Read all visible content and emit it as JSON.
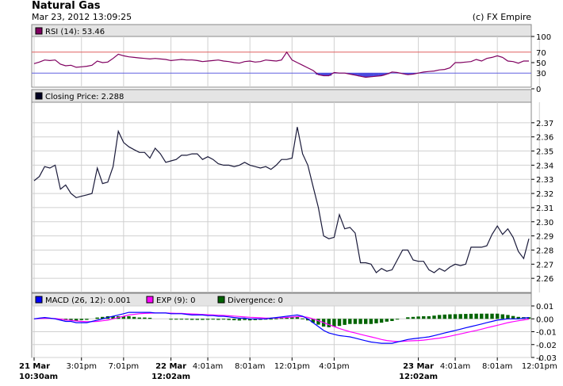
{
  "header": {
    "title": "Natural Gas",
    "timestamp": "Mar 23, 2012 13:09:25",
    "credit": "(c) FX Empire"
  },
  "colors": {
    "rsi_line": "#800060",
    "rsi_fill": "#4a4adf",
    "rsi_upper_line": "#e06060",
    "rsi_lower_line": "#6060e0",
    "price_line": "#1a1a3a",
    "macd_line": "#0000ff",
    "exp_line": "#ff00ff",
    "divergence": "#006400",
    "panel_header": "#e4e4e4",
    "grid": "#d0d0d0"
  },
  "chart_data": [
    {
      "type": "line",
      "legend": "RSI (14): 53.46",
      "legend_color": "#800060",
      "ylim": [
        0,
        100
      ],
      "yticks": [
        "100",
        "50",
        "0"
      ],
      "levels": [
        {
          "value": 70,
          "label": "70",
          "color": "#e06060"
        },
        {
          "value": 30,
          "label": "30",
          "color": "#6060e0"
        }
      ],
      "values": [
        48,
        51,
        55,
        54,
        55,
        47,
        44,
        45,
        41,
        42,
        43,
        45,
        53,
        50,
        51,
        58,
        66,
        63,
        61,
        60,
        59,
        58,
        57,
        58,
        57,
        56,
        54,
        55,
        56,
        55,
        55,
        54,
        52,
        53,
        54,
        55,
        53,
        52,
        50,
        49,
        52,
        53,
        51,
        52,
        55,
        54,
        53,
        55,
        70,
        55,
        50,
        45,
        40,
        35,
        27,
        25,
        25,
        31,
        30,
        30,
        28,
        26,
        24,
        22,
        23,
        24,
        25,
        28,
        32,
        31,
        29,
        27,
        28,
        30,
        32,
        33,
        34,
        36,
        37,
        40,
        50,
        50,
        51,
        52,
        56,
        53,
        58,
        60,
        63,
        60,
        53,
        52,
        49,
        53,
        53
      ]
    },
    {
      "type": "line",
      "legend": "Closing Price: 2.288",
      "legend_color": "#000000",
      "ylim": [
        2.25,
        2.38
      ],
      "yticks": [
        "2.37",
        "2.36",
        "2.35",
        "2.34",
        "2.33",
        "2.32",
        "2.31",
        "2.30",
        "2.29",
        "2.28",
        "2.27",
        "2.26"
      ],
      "values": [
        2.329,
        2.332,
        2.339,
        2.338,
        2.34,
        2.323,
        2.326,
        2.32,
        2.317,
        2.318,
        2.319,
        2.32,
        2.338,
        2.327,
        2.328,
        2.339,
        2.364,
        2.356,
        2.353,
        2.351,
        2.349,
        2.349,
        2.345,
        2.352,
        2.348,
        2.342,
        2.343,
        2.344,
        2.347,
        2.347,
        2.348,
        2.348,
        2.344,
        2.346,
        2.344,
        2.341,
        2.34,
        2.34,
        2.339,
        2.34,
        2.342,
        2.34,
        2.339,
        2.338,
        2.339,
        2.337,
        2.34,
        2.344,
        2.344,
        2.345,
        2.367,
        2.348,
        2.34,
        2.325,
        2.31,
        2.29,
        2.288,
        2.289,
        2.305,
        2.295,
        2.296,
        2.292,
        2.271,
        2.271,
        2.27,
        2.264,
        2.267,
        2.265,
        2.266,
        2.273,
        2.28,
        2.28,
        2.273,
        2.272,
        2.272,
        2.266,
        2.264,
        2.267,
        2.265,
        2.268,
        2.27,
        2.269,
        2.27,
        2.282,
        2.282,
        2.282,
        2.283,
        2.291,
        2.297,
        2.291,
        2.295,
        2.289,
        2.279,
        2.274,
        2.288
      ]
    },
    {
      "type": "line",
      "legend": [
        {
          "label": "MACD (26, 12): 0.001",
          "color": "#0000ff"
        },
        {
          "label": "EXP (9): 0",
          "color": "#ff00ff"
        },
        {
          "label": "Divergence: 0",
          "color": "#006400"
        }
      ],
      "ylim": [
        -0.03,
        0.01
      ],
      "yticks": [
        "0.01",
        "0.00",
        "-0.01",
        "-0.02",
        "-0.03"
      ],
      "series": [
        {
          "name": "MACD (26, 12)",
          "color": "#0000ff",
          "values": [
            0,
            0.0005,
            0.001,
            0.0005,
            0,
            -0.001,
            -0.002,
            -0.002,
            -0.003,
            -0.003,
            -0.003,
            -0.002,
            -0.001,
            0,
            0.001,
            0.002,
            0.003,
            0.004,
            0.005,
            0.005,
            0.005,
            0.005,
            0.005,
            0.0045,
            0.0045,
            0.0045,
            0.004,
            0.004,
            0.004,
            0.0035,
            0.003,
            0.003,
            0.003,
            0.0025,
            0.0025,
            0.002,
            0.002,
            0.0015,
            0.001,
            0.0005,
            0.0005,
            0,
            0,
            0,
            0,
            0.0005,
            0.001,
            0.0015,
            0.002,
            0.0025,
            0.003,
            0.002,
            0,
            -0.003,
            -0.006,
            -0.009,
            -0.011,
            -0.012,
            -0.013,
            -0.0135,
            -0.014,
            -0.015,
            -0.016,
            -0.017,
            -0.018,
            -0.0185,
            -0.019,
            -0.019,
            -0.019,
            -0.018,
            -0.017,
            -0.016,
            -0.0155,
            -0.015,
            -0.0145,
            -0.014,
            -0.013,
            -0.012,
            -0.011,
            -0.01,
            -0.009,
            -0.008,
            -0.007,
            -0.006,
            -0.005,
            -0.004,
            -0.003,
            -0.002,
            -0.001,
            -0.0005,
            0,
            0,
            0,
            0.0005,
            0.001
          ]
        },
        {
          "name": "EXP (9)",
          "color": "#ff00ff",
          "values": [
            0,
            0.0002,
            0.0004,
            0.0004,
            0.0002,
            -0.0002,
            -0.0008,
            -0.0012,
            -0.0016,
            -0.002,
            -0.0022,
            -0.0022,
            -0.002,
            -0.0015,
            -0.001,
            0,
            0.001,
            0.002,
            0.003,
            0.0035,
            0.004,
            0.0042,
            0.0044,
            0.0045,
            0.0045,
            0.0045,
            0.0044,
            0.0043,
            0.0042,
            0.004,
            0.0038,
            0.0036,
            0.0034,
            0.0032,
            0.003,
            0.0028,
            0.0026,
            0.0024,
            0.0021,
            0.0018,
            0.0015,
            0.0012,
            0.001,
            0.0008,
            0.0006,
            0.0006,
            0.0007,
            0.0009,
            0.0011,
            0.0014,
            0.0017,
            0.0017,
            0.0012,
            0,
            -0.0015,
            -0.003,
            -0.0045,
            -0.006,
            -0.0075,
            -0.0088,
            -0.01,
            -0.011,
            -0.012,
            -0.013,
            -0.014,
            -0.015,
            -0.016,
            -0.0168,
            -0.0173,
            -0.0176,
            -0.0175,
            -0.0172,
            -0.017,
            -0.0168,
            -0.0165,
            -0.016,
            -0.0155,
            -0.015,
            -0.0143,
            -0.0135,
            -0.0126,
            -0.0117,
            -0.0108,
            -0.0099,
            -0.009,
            -0.008,
            -0.007,
            -0.006,
            -0.005,
            -0.004,
            -0.003,
            -0.0022,
            -0.0015,
            -0.0008,
            -0.0002
          ]
        },
        {
          "name": "Divergence",
          "color": "#006400",
          "kind": "bar",
          "values": [
            0,
            0,
            0,
            0,
            0,
            -0.001,
            -0.0012,
            -0.0012,
            -0.0014,
            -0.001,
            -0.0008,
            0,
            0.001,
            0.0015,
            0.002,
            0.002,
            0.002,
            0.002,
            0.002,
            0.0015,
            0.001,
            0.001,
            0.0008,
            0,
            0,
            0,
            -0.0004,
            -0.0004,
            -0.0004,
            -0.0005,
            -0.0008,
            -0.0008,
            -0.0008,
            -0.0007,
            -0.0005,
            -0.0008,
            -0.0006,
            -0.0009,
            -0.0011,
            -0.0013,
            -0.001,
            -0.0012,
            -0.001,
            -0.0008,
            -0.0006,
            -0.0001,
            0.0003,
            0.0006,
            0.0009,
            0.0011,
            0.0013,
            0.0003,
            -0.0012,
            -0.003,
            -0.0045,
            -0.006,
            -0.0065,
            -0.006,
            -0.0055,
            -0.0047,
            -0.004,
            -0.004,
            -0.004,
            -0.004,
            -0.004,
            -0.0035,
            -0.003,
            -0.0022,
            -0.0017,
            -0.0005,
            0,
            0.0012,
            0.0015,
            0.0018,
            0.002,
            0.002,
            0.0025,
            0.003,
            0.0033,
            0.0035,
            0.0036,
            0.0037,
            0.0038,
            0.0039,
            0.004,
            0.004,
            0.004,
            0.004,
            0.004,
            0.0035,
            0.003,
            0.0022,
            0.0015,
            0.0013,
            0.0012
          ]
        }
      ]
    }
  ],
  "x_axis": {
    "labels": [
      {
        "index": 0,
        "text": "21 Mar",
        "text2": "10:30am",
        "bold": true
      },
      {
        "index": 9,
        "text": "3:01pm",
        "bold": false
      },
      {
        "index": 17,
        "text": "7:01pm",
        "bold": false
      },
      {
        "index": 26,
        "text": "22 Mar",
        "text2": "12:02am",
        "bold": true
      },
      {
        "index": 33,
        "text": "4:01am",
        "bold": false
      },
      {
        "index": 41,
        "text": "8:01am",
        "bold": false
      },
      {
        "index": 49,
        "text": "12:01pm",
        "bold": false
      },
      {
        "index": 57,
        "text": "4:01pm",
        "bold": false
      },
      {
        "index": 73,
        "text": "23 Mar",
        "text2": "12:02am",
        "bold": true
      },
      {
        "index": 80,
        "text": "4:01am",
        "bold": false
      },
      {
        "index": 88,
        "text": "8:01am",
        "bold": false
      },
      {
        "index": 96,
        "text": "12:01pm",
        "bold": false
      }
    ]
  }
}
